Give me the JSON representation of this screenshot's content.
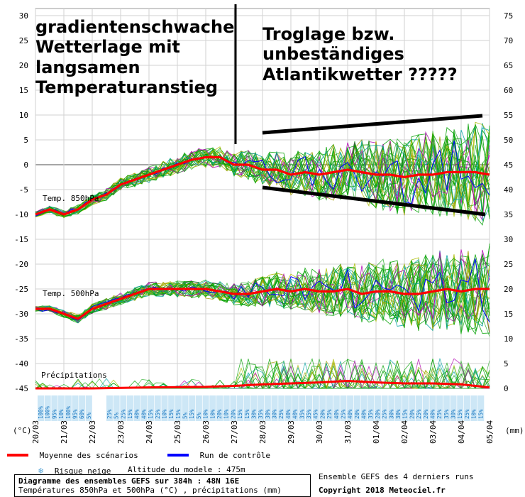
{
  "chart_data": {
    "type": "line",
    "title": "Diagramme des ensembles GEFS sur 384h : 48N 16E",
    "subtitle": "Températures 850hPa et 500hPa (°C) , précipitations (mm)",
    "left_axis_unit": "(°C)",
    "right_axis_unit": "(mm)",
    "left_ticks": [
      30,
      25,
      20,
      15,
      10,
      5,
      0,
      -5,
      -10,
      -15,
      -20,
      -25,
      -30,
      -35,
      -40,
      -45
    ],
    "right_ticks": [
      75,
      70,
      65,
      60,
      55,
      50,
      45,
      40,
      35,
      30,
      25,
      20,
      15,
      10,
      5,
      0
    ],
    "x_labels": [
      "20/03",
      "21/03",
      "22/03",
      "23/03",
      "24/03",
      "25/03",
      "26/03",
      "27/03",
      "28/03",
      "29/03",
      "30/03",
      "31/03",
      "01/04",
      "02/04",
      "03/04",
      "04/04",
      "05/04"
    ],
    "series_labels": [
      "Temp. 850hPa",
      "Temp. 500hPa",
      "Précipitations"
    ],
    "series": [
      {
        "name": "Moyenne des scénarios",
        "color": "#ff0000",
        "t850_x": [
          0,
          0.5,
          1,
          1.5,
          2,
          2.5,
          3,
          3.5,
          4,
          4.5,
          5,
          5.5,
          6,
          6.5,
          7,
          7.5,
          8,
          8.5,
          9,
          9.5,
          10,
          10.5,
          11,
          11.5,
          12,
          12.5,
          13,
          13.5,
          14,
          14.5,
          15,
          15.5,
          16
        ],
        "t850_y": [
          -10,
          -9,
          -10,
          -9,
          -7,
          -6,
          -4,
          -3,
          -2,
          -1,
          0,
          1,
          1.5,
          1.5,
          0,
          0,
          -1,
          -1,
          -2,
          -1.5,
          -2,
          -1.5,
          -1,
          -1.5,
          -2,
          -2,
          -2.5,
          -2,
          -2,
          -1.5,
          -1.5,
          -1.5,
          -2
        ],
        "t500_x": [
          0,
          0.5,
          1,
          1.5,
          2,
          2.5,
          3,
          3.5,
          4,
          4.5,
          5,
          5.5,
          6,
          6.5,
          7,
          7.5,
          8,
          8.5,
          9,
          9.5,
          10,
          10.5,
          11,
          11.5,
          12,
          12.5,
          13,
          13.5,
          14,
          14.5,
          15,
          15.5,
          16
        ],
        "t500_y": [
          -29,
          -29,
          -30,
          -31,
          -29,
          -28,
          -27,
          -26,
          -25,
          -25,
          -25,
          -25,
          -25,
          -25.5,
          -26,
          -26,
          -25.5,
          -25,
          -25.5,
          -25,
          -25.5,
          -25.5,
          -25,
          -26,
          -25.5,
          -25.5,
          -26,
          -26,
          -25.5,
          -25,
          -25.5,
          -25,
          -25
        ],
        "precip_x": [
          0,
          2,
          4,
          6,
          7,
          8,
          9,
          10,
          11,
          12,
          13,
          14,
          15,
          16
        ],
        "precip_mm": [
          0,
          0,
          0.2,
          0.3,
          0.5,
          0.8,
          1,
          1.2,
          1.5,
          1.2,
          1,
          1,
          0.8,
          0.2
        ]
      },
      {
        "name": "Run de contrôle",
        "color": "#0000ff"
      }
    ],
    "snow_risk_pct": [
      "100%",
      "100%",
      "95%",
      "10%",
      "100%",
      "95%",
      "60%",
      "5%",
      "",
      "",
      "25%",
      "5%",
      "25%",
      "15%",
      "40%",
      "40%",
      "15%",
      "25%",
      "10%",
      "15%",
      "15%",
      "5%",
      "15%",
      "5%",
      "10%",
      "10%",
      "20%",
      "10%",
      "20%",
      "15%",
      "15%",
      "30%",
      "35%",
      "30%",
      "30%",
      "25%",
      "40%",
      "40%",
      "35%",
      "35%",
      "45%",
      "20%",
      "25%",
      "40%",
      "25%",
      "40%",
      "20%",
      "40%",
      "35%",
      "20%",
      "25%",
      "30%",
      "30%",
      "15%",
      "20%",
      "25%",
      "20%",
      "40%",
      "25%",
      "35%",
      "30%",
      "15%",
      "25%",
      "10%",
      "15%"
    ],
    "grid": true
  },
  "legend": {
    "mean_label": "Moyenne des scénarios",
    "control_label": "Run de contrôle",
    "snow_label": "Risque neige",
    "altitude": "Altitude du modele : 475m",
    "ensemble_note": "Ensemble GEFS des 4 derniers runs",
    "copyright": "Copyright 2018 Meteociel.fr"
  },
  "annotations": {
    "left_text": [
      "gradientenschwache",
      "Wetterlage mit",
      "langsamen",
      "Temperaturanstieg"
    ],
    "right_text": [
      "Troglage bzw.",
      "unbeständiges",
      "Atlantikwetter  ?????"
    ]
  }
}
